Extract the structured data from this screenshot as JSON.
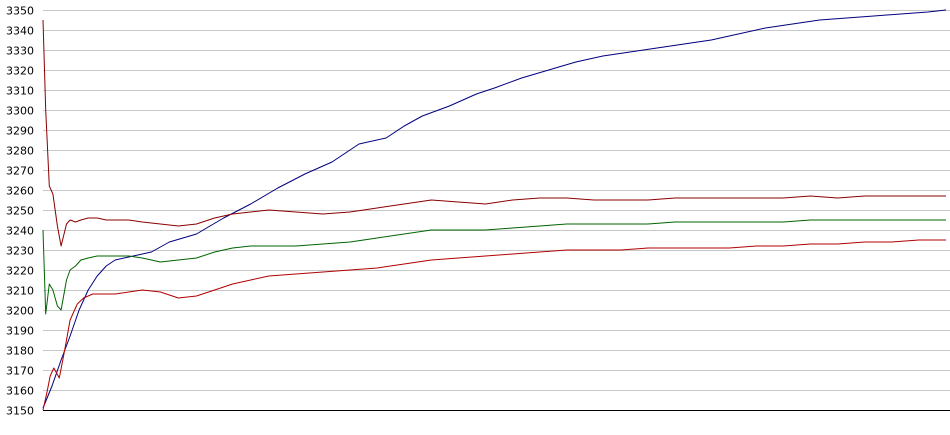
{
  "chart_data": {
    "type": "line",
    "title": "",
    "xlabel": "",
    "ylabel": "",
    "ylim": [
      3150,
      3350
    ],
    "xlim": [
      0,
      100
    ],
    "yticks": [
      3150,
      3160,
      3170,
      3180,
      3190,
      3200,
      3210,
      3220,
      3230,
      3240,
      3250,
      3260,
      3270,
      3280,
      3290,
      3300,
      3310,
      3320,
      3330,
      3340,
      3350
    ],
    "grid": true,
    "legend": "none",
    "series": [
      {
        "color": "#000080",
        "x": [
          0,
          1,
          2,
          3,
          4,
          5,
          6,
          7,
          8,
          10,
          12,
          14,
          17,
          20,
          23,
          26,
          29,
          32,
          35,
          38,
          40,
          42,
          45,
          48,
          50,
          53,
          56,
          59,
          62,
          65,
          68,
          71,
          74,
          77,
          80,
          83,
          86,
          89,
          92,
          95,
          98,
          100
        ],
        "y": [
          3151,
          3162,
          3175,
          3187,
          3200,
          3210,
          3217,
          3222,
          3225,
          3227,
          3229,
          3234,
          3238,
          3246,
          3253,
          3261,
          3268,
          3274,
          3283,
          3286,
          3292,
          3297,
          3302,
          3308,
          3311,
          3316,
          3320,
          3324,
          3327,
          3329,
          3331,
          3333,
          3335,
          3338,
          3341,
          3343,
          3345,
          3346,
          3347,
          3348,
          3349,
          3350
        ]
      },
      {
        "color": "#8b0000",
        "x": [
          0,
          0.3,
          0.7,
          1.1,
          1.6,
          2.0,
          2.6,
          3.0,
          3.6,
          4.2,
          5.0,
          6.0,
          7.0,
          8.0,
          9.5,
          11,
          13,
          15,
          17,
          19,
          21,
          23,
          25,
          28,
          31,
          34,
          37,
          40,
          43,
          46,
          49,
          52,
          55,
          58,
          61,
          64,
          67,
          70,
          73,
          76,
          79,
          82,
          85,
          88,
          91,
          94,
          97,
          100
        ],
        "y": [
          3345,
          3300,
          3262,
          3258,
          3242,
          3232,
          3243,
          3245,
          3244,
          3245,
          3246,
          3246,
          3245,
          3245,
          3245,
          3244,
          3243,
          3242,
          3243,
          3246,
          3248,
          3249,
          3250,
          3249,
          3248,
          3249,
          3251,
          3253,
          3255,
          3254,
          3253,
          3255,
          3256,
          3256,
          3255,
          3255,
          3255,
          3256,
          3256,
          3256,
          3256,
          3256,
          3257,
          3256,
          3257,
          3257,
          3257,
          3257
        ]
      },
      {
        "color": "#006400",
        "x": [
          0,
          0.3,
          0.7,
          1.1,
          1.6,
          2.0,
          2.6,
          3.0,
          3.6,
          4.2,
          5.0,
          6.0,
          7.0,
          8.0,
          9.5,
          11,
          13,
          15,
          17,
          19,
          21,
          23,
          25,
          28,
          31,
          34,
          37,
          40,
          43,
          46,
          49,
          52,
          55,
          58,
          61,
          64,
          67,
          70,
          73,
          76,
          79,
          82,
          85,
          88,
          91,
          94,
          97,
          100
        ],
        "y": [
          3240,
          3198,
          3213,
          3210,
          3202,
          3200,
          3215,
          3220,
          3222,
          3225,
          3226,
          3227,
          3227,
          3227,
          3227,
          3226,
          3224,
          3225,
          3226,
          3229,
          3231,
          3232,
          3232,
          3232,
          3233,
          3234,
          3236,
          3238,
          3240,
          3240,
          3240,
          3241,
          3242,
          3243,
          3243,
          3243,
          3243,
          3244,
          3244,
          3244,
          3244,
          3244,
          3245,
          3245,
          3245,
          3245,
          3245,
          3245
        ]
      },
      {
        "color": "#b00000",
        "x": [
          0,
          0.4,
          0.8,
          1.2,
          1.8,
          2.4,
          3.0,
          3.8,
          4.5,
          5.5,
          6.5,
          8.0,
          9.5,
          11,
          13,
          15,
          17,
          19,
          21,
          23,
          25,
          28,
          31,
          34,
          37,
          40,
          43,
          46,
          49,
          52,
          55,
          58,
          61,
          64,
          67,
          70,
          73,
          76,
          79,
          82,
          85,
          88,
          91,
          94,
          97,
          100
        ],
        "y": [
          3150,
          3158,
          3167,
          3171,
          3166,
          3180,
          3195,
          3203,
          3206,
          3208,
          3208,
          3208,
          3209,
          3210,
          3209,
          3206,
          3207,
          3210,
          3213,
          3215,
          3217,
          3218,
          3219,
          3220,
          3221,
          3223,
          3225,
          3226,
          3227,
          3228,
          3229,
          3230,
          3230,
          3230,
          3231,
          3231,
          3231,
          3231,
          3232,
          3232,
          3233,
          3233,
          3234,
          3234,
          3235,
          3235
        ]
      }
    ]
  }
}
